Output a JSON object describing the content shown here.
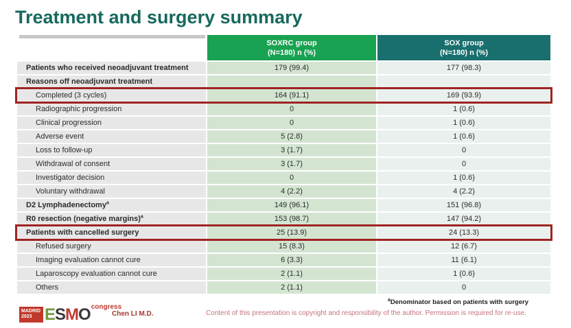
{
  "slide": {
    "title": "Treatment and surgery summary",
    "presenter": "Chen LI M.D.",
    "footnote_marker": "a",
    "footnote": "Denominator based on patients with surgery",
    "copyright": "Content of this presentation is copyright and responsibility of the author. Permission is required for re-use."
  },
  "logo": {
    "location": "MADRID",
    "year": "2023",
    "letters": [
      "E",
      "S",
      "M",
      "O"
    ],
    "congress": "congress"
  },
  "colors": {
    "title": "#17695e",
    "soxrc_header": "#18a251",
    "sox_header": "#186f6d",
    "label_cell": "#e8e7e7",
    "soxrc_cell": "#d3e5d1",
    "sox_cell": "#eaf0ed",
    "highlight_border": "#a02222",
    "copyright_text": "#c4737b",
    "logo_red": "#c0392b"
  },
  "table": {
    "headers": [
      {
        "line1": "SOXRC group",
        "line2": "(N=180)  n (%)"
      },
      {
        "line1": "SOX group",
        "line2": "(N=180)  n (%)"
      }
    ],
    "rows": [
      {
        "label": "Patients who received neoadjuvant treatment",
        "bold": true,
        "indent": false,
        "soxrc": "179 (99.4)",
        "sox": "177 (98.3)",
        "highlight": false
      },
      {
        "label": "Reasons off neoadjuvant treatment",
        "bold": true,
        "indent": false,
        "soxrc": "",
        "sox": "",
        "highlight": false
      },
      {
        "label": "Completed (3 cycles)",
        "bold": false,
        "indent": true,
        "soxrc": "164 (91.1)",
        "sox": "169 (93.9)",
        "highlight": true
      },
      {
        "label": "Radiographic progression",
        "bold": false,
        "indent": true,
        "soxrc": "0",
        "sox": "1 (0.6)",
        "highlight": false
      },
      {
        "label": "Clinical progression",
        "bold": false,
        "indent": true,
        "soxrc": "0",
        "sox": "1 (0.6)",
        "highlight": false
      },
      {
        "label": "Adverse event",
        "bold": false,
        "indent": true,
        "soxrc": "5 (2.8)",
        "sox": "1 (0.6)",
        "highlight": false
      },
      {
        "label": "Loss to follow-up",
        "bold": false,
        "indent": true,
        "soxrc": "3 (1.7)",
        "sox": "0",
        "highlight": false
      },
      {
        "label": "Withdrawal of consent",
        "bold": false,
        "indent": true,
        "soxrc": "3 (1.7)",
        "sox": "0",
        "highlight": false
      },
      {
        "label": "Investigator decision",
        "bold": false,
        "indent": true,
        "soxrc": "0",
        "sox": "1 (0.6)",
        "highlight": false
      },
      {
        "label": "Voluntary withdrawal",
        "bold": false,
        "indent": true,
        "soxrc": "4 (2.2)",
        "sox": "4 (2.2)",
        "highlight": false
      },
      {
        "label": "D2 Lymphadenectomy",
        "sup": "a",
        "bold": true,
        "indent": false,
        "soxrc": "149 (96.1)",
        "sox": "151 (96.8)",
        "highlight": false
      },
      {
        "label": "R0 resection (negative margins)",
        "sup": "a",
        "bold": true,
        "indent": false,
        "soxrc": "153 (98.7)",
        "sox": "147 (94.2)",
        "highlight": false
      },
      {
        "label": "Patients with cancelled surgery",
        "bold": true,
        "indent": false,
        "soxrc": "25 (13.9)",
        "sox": "24 (13.3)",
        "highlight": true
      },
      {
        "label": "Refused surgery",
        "bold": false,
        "indent": true,
        "soxrc": "15 (8.3)",
        "sox": "12 (6.7)",
        "highlight": false
      },
      {
        "label": "Imaging evaluation cannot cure",
        "bold": false,
        "indent": true,
        "soxrc": "6 (3.3)",
        "sox": "11 (6.1)",
        "highlight": false
      },
      {
        "label": "Laparoscopy evaluation cannot cure",
        "bold": false,
        "indent": true,
        "soxrc": "2 (1.1)",
        "sox": "1 (0.6)",
        "highlight": false
      },
      {
        "label": "Others",
        "bold": false,
        "indent": true,
        "soxrc": "2 (1.1)",
        "sox": "0",
        "highlight": false
      }
    ]
  }
}
